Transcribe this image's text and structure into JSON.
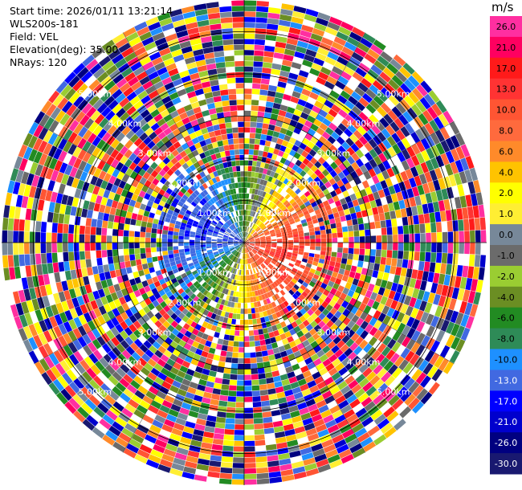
{
  "info": {
    "start_time": "Start time: 2026/01/11 13:21:14",
    "site": "WLS200s-181",
    "field": "Field: VEL",
    "elevation": "Elevation(deg): 35.00",
    "nrays": "NRays: 120"
  },
  "colorbar": {
    "unit": "m/s",
    "entries": [
      {
        "label": "26.0",
        "color": "#ff2fa0"
      },
      {
        "label": "21.0",
        "color": "#ff0060"
      },
      {
        "label": "17.0",
        "color": "#ff1a1a"
      },
      {
        "label": "13.0",
        "color": "#ff3333"
      },
      {
        "label": "10.0",
        "color": "#ff5533"
      },
      {
        "label": "8.0",
        "color": "#ff6a3d"
      },
      {
        "label": "6.0",
        "color": "#ff8a2a"
      },
      {
        "label": "4.0",
        "color": "#ffc300"
      },
      {
        "label": "2.0",
        "color": "#ffff00"
      },
      {
        "label": "1.0",
        "color": "#ffee33"
      },
      {
        "label": "0.0",
        "color": "#778899"
      },
      {
        "label": "-1.0",
        "color": "#6b6b6b"
      },
      {
        "label": "-2.0",
        "color": "#9acd32"
      },
      {
        "label": "-4.0",
        "color": "#6b8e23"
      },
      {
        "label": "-6.0",
        "color": "#228b22"
      },
      {
        "label": "-8.0",
        "color": "#2e8b57"
      },
      {
        "label": "-10.0",
        "color": "#1e90ff"
      },
      {
        "label": "-13.0",
        "color": "#4169e1"
      },
      {
        "label": "-17.0",
        "color": "#0000ff"
      },
      {
        "label": "-21.0",
        "color": "#0000cd"
      },
      {
        "label": "-26.0",
        "color": "#000080"
      },
      {
        "label": "-30.0",
        "color": "#191970"
      }
    ]
  },
  "chart_data": {
    "type": "heatmap",
    "projection": "polar PPI",
    "field": "VEL",
    "nrays": 120,
    "range_rings_km": [
      1,
      2,
      3,
      4,
      5
    ],
    "ring_labels": [
      "1.00km",
      "2.00km",
      "3.00km",
      "4.00km",
      "5.00km"
    ],
    "structure": "coherent velocity field within ~2.5 km: negative (blue) to the west, positive (red) to the east, yellow/orange to the south, green to the north; beyond ~2.5 km noisy mix of all colors",
    "colormap_ticks": [
      "26.0",
      "21.0",
      "17.0",
      "13.0",
      "10.0",
      "8.0",
      "6.0",
      "4.0",
      "2.0",
      "1.0",
      "0.0",
      "-1.0",
      "-2.0",
      "-4.0",
      "-6.0",
      "-8.0",
      "-10.0",
      "-13.0",
      "-17.0",
      "-21.0",
      "-26.0",
      "-30.0"
    ]
  }
}
